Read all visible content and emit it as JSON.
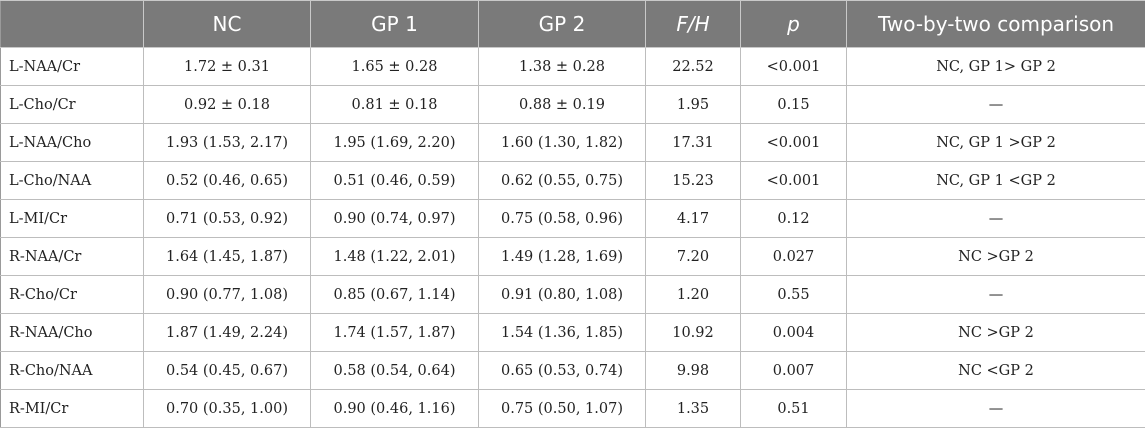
{
  "table": {
    "headers": [
      "",
      "NC",
      "GP 1",
      "GP 2",
      "F/H",
      "p",
      "Two-by-two comparison"
    ],
    "rows": [
      [
        "L-NAA/Cr",
        "1.72 ± 0.31",
        "1.65 ± 0.28",
        "1.38 ± 0.28",
        "22.52",
        "<0.001",
        "NC, GP 1> GP 2"
      ],
      [
        "L-Cho/Cr",
        "0.92 ± 0.18",
        "0.81 ± 0.18",
        "0.88 ± 0.19",
        "1.95",
        "0.15",
        "—"
      ],
      [
        "L-NAA/Cho",
        "1.93 (1.53, 2.17)",
        "1.95 (1.69, 2.20)",
        "1.60 (1.30, 1.82)",
        "17.31",
        "<0.001",
        "NC, GP 1 >GP 2"
      ],
      [
        "L-Cho/NAA",
        "0.52 (0.46, 0.65)",
        "0.51 (0.46, 0.59)",
        "0.62 (0.55, 0.75)",
        "15.23",
        "<0.001",
        "NC, GP 1 <GP 2"
      ],
      [
        "L-MI/Cr",
        "0.71 (0.53, 0.92)",
        "0.90 (0.74, 0.97)",
        "0.75 (0.58, 0.96)",
        "4.17",
        "0.12",
        "—"
      ],
      [
        "R-NAA/Cr",
        "1.64 (1.45, 1.87)",
        "1.48 (1.22, 2.01)",
        "1.49 (1.28, 1.69)",
        "7.20",
        "0.027",
        "NC >GP 2"
      ],
      [
        "R-Cho/Cr",
        "0.90 (0.77, 1.08)",
        "0.85 (0.67, 1.14)",
        "0.91 (0.80, 1.08)",
        "1.20",
        "0.55",
        "—"
      ],
      [
        "R-NAA/Cho",
        "1.87 (1.49, 2.24)",
        "1.74 (1.57, 1.87)",
        "1.54 (1.36, 1.85)",
        "10.92",
        "0.004",
        "NC >GP 2"
      ],
      [
        "R-Cho/NAA",
        "0.54 (0.45, 0.67)",
        "0.58 (0.54, 0.64)",
        "0.65 (0.53, 0.74)",
        "9.98",
        "0.007",
        "NC <GP 2"
      ],
      [
        "R-MI/Cr",
        "0.70 (0.35, 1.00)",
        "0.90 (0.46, 1.16)",
        "0.75 (0.50, 1.07)",
        "1.35",
        "0.51",
        "—"
      ]
    ]
  }
}
